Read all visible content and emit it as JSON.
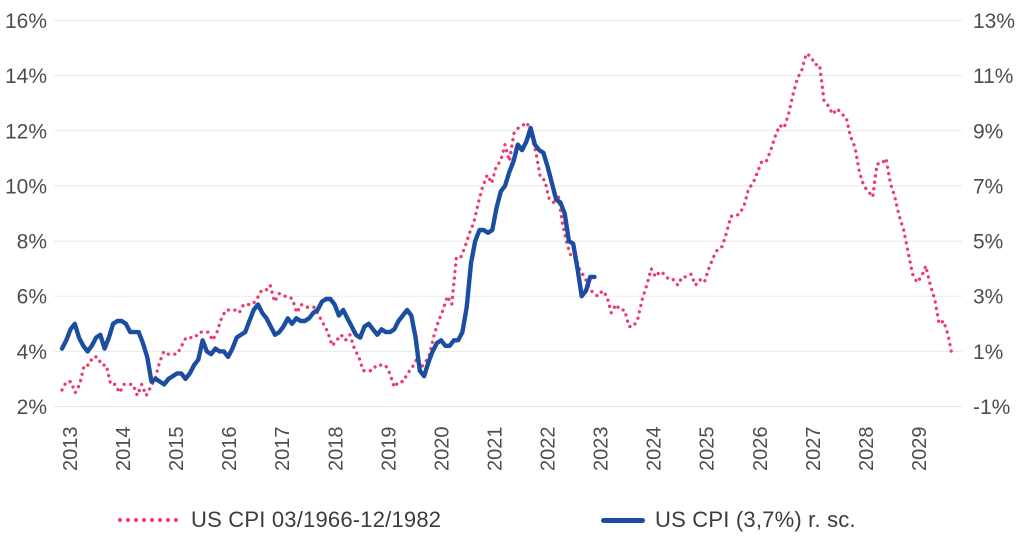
{
  "chart_data": {
    "type": "line",
    "title": "",
    "grid": "horizontal",
    "legend_position": "bottom",
    "x_axis": {
      "tick_labels": [
        "2013",
        "2014",
        "2015",
        "2016",
        "2017",
        "2018",
        "2019",
        "2020",
        "2021",
        "2022",
        "2023",
        "2024",
        "2025",
        "2026",
        "2027",
        "2028",
        "2029"
      ],
      "tick_label_rotation_deg": -90
    },
    "left_axis": {
      "tick_labels": [
        "16%",
        "14%",
        "12%",
        "10%",
        "8%",
        "6%",
        "4%",
        "2%"
      ],
      "tick_values": [
        16,
        14,
        12,
        10,
        8,
        6,
        4,
        2
      ],
      "min": 2,
      "max": 16
    },
    "right_axis": {
      "tick_labels": [
        "13%",
        "11%",
        "9%",
        "7%",
        "5%",
        "3%",
        "1%",
        "-1%"
      ],
      "tick_values": [
        13,
        11,
        9,
        7,
        5,
        3,
        1,
        -1
      ],
      "min": -1,
      "max": 13,
      "offset_vs_left": 3
    },
    "series": [
      {
        "name": "US CPI 03/1966-12/1982",
        "axis": "left",
        "style": "dotted",
        "color": "#ec3b6e",
        "frequency": "monthly",
        "start": "1966-03",
        "end": "1982-12",
        "values": [
          2.6,
          2.9,
          2.9,
          2.5,
          2.8,
          3.5,
          3.5,
          3.8,
          3.8,
          3.5,
          3.5,
          2.8,
          2.8,
          2.5,
          2.8,
          2.8,
          2.8,
          2.4,
          2.8,
          2.4,
          2.7,
          3.0,
          3.6,
          4.0,
          3.9,
          3.9,
          3.9,
          4.2,
          4.5,
          4.5,
          4.5,
          4.7,
          4.7,
          4.7,
          4.4,
          4.7,
          5.2,
          5.5,
          5.5,
          5.5,
          5.4,
          5.7,
          5.7,
          5.7,
          5.9,
          6.2,
          6.2,
          6.4,
          5.8,
          6.1,
          6.0,
          6.0,
          5.9,
          5.4,
          5.7,
          5.6,
          5.6,
          5.6,
          5.3,
          5.0,
          4.7,
          4.2,
          4.4,
          4.6,
          4.4,
          4.6,
          4.1,
          3.8,
          3.3,
          3.3,
          3.3,
          3.5,
          3.5,
          3.5,
          3.2,
          2.7,
          2.9,
          2.9,
          3.2,
          3.4,
          3.7,
          3.4,
          3.6,
          3.9,
          4.6,
          5.1,
          5.5,
          6.0,
          5.7,
          7.4,
          7.4,
          7.8,
          8.3,
          8.7,
          9.4,
          10.0,
          10.4,
          10.1,
          10.7,
          10.9,
          11.5,
          10.9,
          11.9,
          12.1,
          12.2,
          12.3,
          11.8,
          11.2,
          10.3,
          10.2,
          9.5,
          9.4,
          9.7,
          8.6,
          7.9,
          7.4,
          7.4,
          6.9,
          6.7,
          6.3,
          6.1,
          6.0,
          6.2,
          6.0,
          5.4,
          5.7,
          5.5,
          5.5,
          4.9,
          4.9,
          5.2,
          5.9,
          6.4,
          7.0,
          6.7,
          6.9,
          6.8,
          6.6,
          6.6,
          6.4,
          6.7,
          6.7,
          6.8,
          6.4,
          6.6,
          6.5,
          7.0,
          7.4,
          7.7,
          7.8,
          8.3,
          8.9,
          8.9,
          9.0,
          9.3,
          9.9,
          10.1,
          10.5,
          10.9,
          10.9,
          11.3,
          11.8,
          12.2,
          12.1,
          12.6,
          13.3,
          13.9,
          14.2,
          14.8,
          14.7,
          14.4,
          14.4,
          13.1,
          12.9,
          12.6,
          12.8,
          12.6,
          12.5,
          11.8,
          11.4,
          10.5,
          10.0,
          9.8,
          9.6,
          10.8,
          10.8,
          11.0,
          10.1,
          9.6,
          8.9,
          8.4,
          7.6,
          6.8,
          6.5,
          6.7,
          7.1,
          6.4,
          5.9,
          5.0,
          5.1,
          4.6,
          3.8
        ]
      },
      {
        "name": "US CPI (3,7%) r. sc.",
        "axis": "right",
        "style": "solid",
        "color": "#1b4ea0",
        "frequency": "monthly",
        "start": "2013-04",
        "end": "2023-09",
        "values": [
          1.1,
          1.4,
          1.8,
          2.0,
          1.5,
          1.2,
          1.0,
          1.2,
          1.5,
          1.6,
          1.1,
          1.5,
          2.0,
          2.1,
          2.1,
          2.0,
          1.7,
          1.7,
          1.7,
          1.3,
          0.8,
          -0.1,
          0.0,
          -0.1,
          -0.2,
          0.0,
          0.1,
          0.2,
          0.2,
          0.0,
          0.2,
          0.5,
          0.7,
          1.4,
          1.0,
          0.9,
          1.1,
          1.0,
          1.0,
          0.8,
          1.1,
          1.5,
          1.6,
          1.7,
          2.1,
          2.5,
          2.7,
          2.4,
          2.2,
          1.9,
          1.6,
          1.7,
          1.9,
          2.2,
          2.0,
          2.2,
          2.1,
          2.1,
          2.2,
          2.4,
          2.5,
          2.8,
          2.9,
          2.9,
          2.7,
          2.3,
          2.5,
          2.2,
          1.9,
          1.6,
          1.5,
          1.9,
          2.0,
          1.8,
          1.6,
          1.8,
          1.7,
          1.7,
          1.8,
          2.1,
          2.3,
          2.5,
          2.3,
          1.5,
          0.3,
          0.1,
          0.6,
          1.0,
          1.3,
          1.4,
          1.2,
          1.2,
          1.4,
          1.4,
          1.7,
          2.6,
          4.2,
          5.0,
          5.4,
          5.4,
          5.3,
          5.4,
          6.2,
          6.8,
          7.0,
          7.5,
          7.9,
          8.5,
          8.3,
          8.6,
          9.1,
          8.5,
          8.3,
          8.2,
          7.7,
          7.1,
          6.5,
          6.4,
          6.0,
          5.0,
          4.9,
          4.0,
          3.0,
          3.2,
          3.7,
          3.7
        ]
      }
    ]
  },
  "legend": {
    "item1": "US CPI 03/1966-12/1982",
    "item2": "US CPI (3,7%) r. sc."
  },
  "colors": {
    "background": "#ffffff",
    "gridline": "#e8e8e8",
    "axis_text": "#4d4d4d",
    "legend_text": "#3c3c3c",
    "series_historical": "#ec3b6e",
    "series_current": "#1b4ea0"
  }
}
